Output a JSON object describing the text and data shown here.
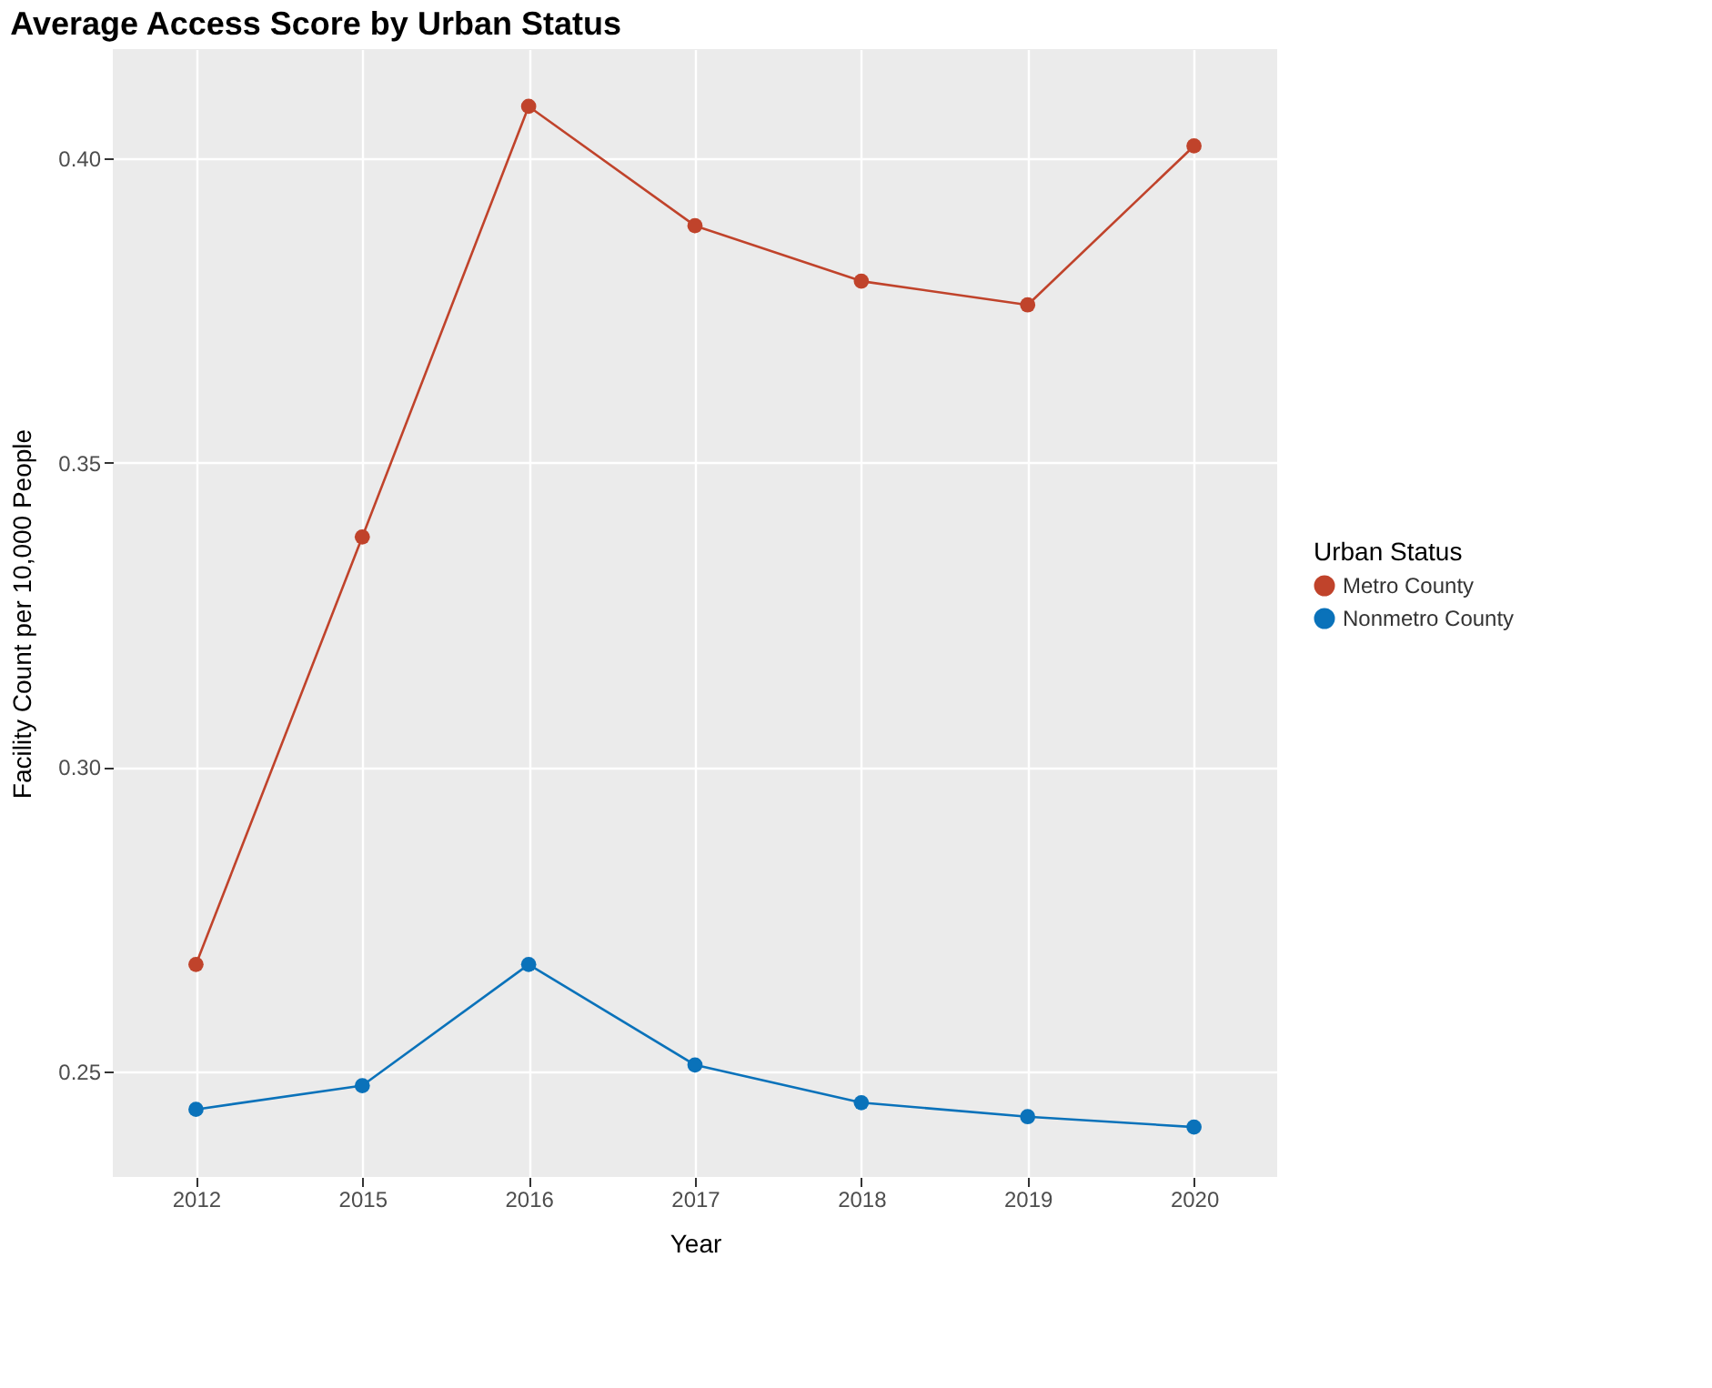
{
  "chart_data": {
    "type": "line",
    "title": "Average Access Score by Urban Status",
    "xlabel": "Year",
    "ylabel": "Facility Count per 10,000 People",
    "legend_title": "Urban Status",
    "categories": [
      "2012",
      "2015",
      "2016",
      "2017",
      "2018",
      "2019",
      "2020"
    ],
    "series": [
      {
        "name": "Metro County",
        "color": "#c0432b",
        "values": [
          0.2676,
          0.3378,
          0.4085,
          0.3889,
          0.3798,
          0.3759,
          0.402
        ]
      },
      {
        "name": "Nonmetro County",
        "color": "#0a72ba",
        "values": [
          0.2438,
          0.2477,
          0.2676,
          0.2511,
          0.2449,
          0.2426,
          0.2409
        ]
      }
    ],
    "ylim": [
      0.2327,
      0.4179
    ],
    "yticks": [
      0.25,
      {
        "value": 0.3,
        "label": "0.30"
      },
      0.35,
      {
        "value": 0.4,
        "label": "0.40"
      }
    ],
    "grid": true,
    "legend": "right",
    "marker": "circle",
    "line_style": "solid"
  }
}
